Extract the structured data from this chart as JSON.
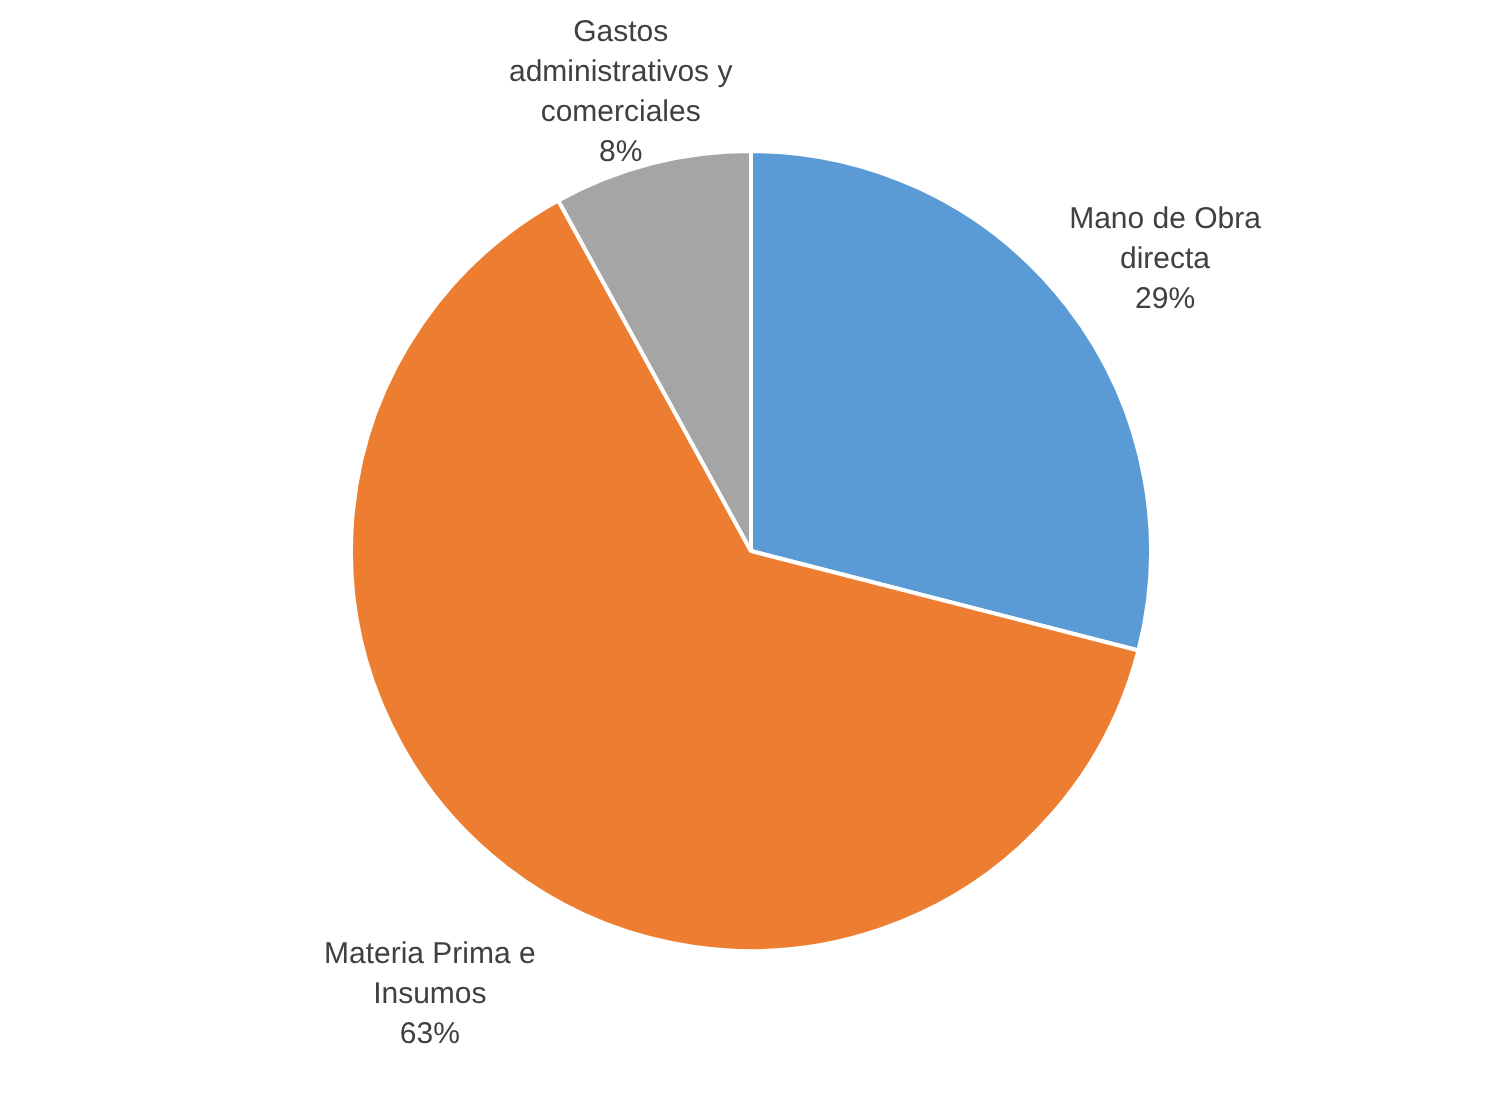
{
  "chart_data": {
    "type": "pie",
    "categories": [
      "Mano de Obra directa",
      "Materia Prima e Insumos",
      "Gastos administrativos y comerciales"
    ],
    "values": [
      29,
      63,
      8
    ],
    "colors": [
      "#5b9bd5",
      "#ed7d31",
      "#a5a5a5"
    ],
    "value_labels": [
      "29%",
      "63%",
      "8%"
    ]
  }
}
